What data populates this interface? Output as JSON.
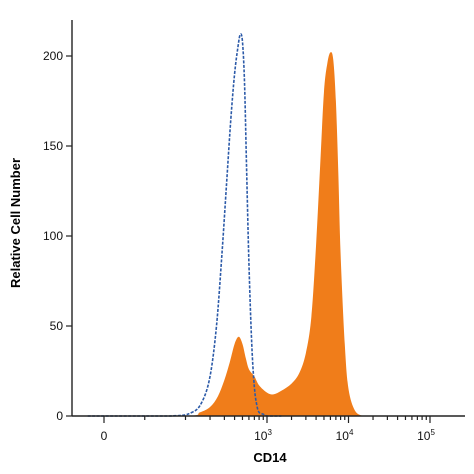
{
  "chart_data": {
    "type": "area",
    "xlabel": "CD14",
    "ylabel": "Relative Cell Number",
    "x_scale": "biexponential (flow cytometry)",
    "x_ticks": [
      {
        "base": "0",
        "exp": ""
      },
      {
        "base": "10",
        "exp": "3"
      },
      {
        "base": "10",
        "exp": "4"
      },
      {
        "base": "10",
        "exp": "5"
      }
    ],
    "y_ticks": [
      "0",
      "50",
      "100",
      "150",
      "200"
    ],
    "ylim": [
      0,
      220
    ],
    "grid": false,
    "legend": "none",
    "colors": {
      "sample": "#f07d1a",
      "isotype": "#2c5aa8",
      "axis": "#222222"
    },
    "series": [
      {
        "style": "filled",
        "color": "#f07d1a",
        "x": [
          -20,
          100,
          150,
          200,
          250,
          300,
          350,
          400,
          450,
          500,
          550,
          600,
          700,
          800,
          1000,
          1200,
          1500,
          2000,
          2500,
          3000,
          3500,
          4000,
          4500,
          5000,
          5500,
          6000,
          6500,
          7000,
          7500,
          8000,
          9000,
          10000,
          12000,
          15000
        ],
        "values": [
          0,
          0,
          2,
          5,
          11,
          20,
          30,
          40,
          44,
          40,
          32,
          26,
          22,
          17,
          13,
          12,
          14,
          18,
          24,
          35,
          55,
          95,
          140,
          180,
          196,
          202,
          198,
          175,
          135,
          90,
          40,
          15,
          3,
          0
        ]
      },
      {
        "style": "outline",
        "color": "#2c5aa8",
        "x": [
          -20,
          80,
          120,
          160,
          200,
          240,
          280,
          320,
          360,
          400,
          440,
          470,
          500,
          530,
          560,
          600,
          650,
          700,
          750,
          800,
          900,
          1000,
          1200,
          1500
        ],
        "values": [
          0,
          0,
          2,
          8,
          22,
          50,
          90,
          130,
          165,
          190,
          205,
          212,
          208,
          185,
          140,
          85,
          40,
          16,
          6,
          2,
          1,
          0,
          0,
          0
        ]
      }
    ]
  }
}
